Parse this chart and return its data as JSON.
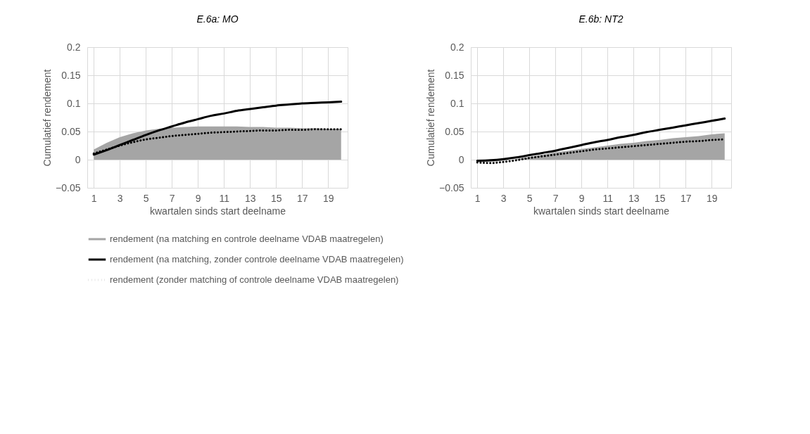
{
  "chart_data": [
    {
      "type": "line",
      "title": "E.6a: MO",
      "xlabel": "kwartalen sinds start deelname",
      "ylabel": "Cumulatief rendement",
      "x": [
        1,
        2,
        3,
        4,
        5,
        6,
        7,
        8,
        9,
        10,
        11,
        12,
        13,
        14,
        15,
        16,
        17,
        18,
        19,
        20
      ],
      "xlim": [
        0.5,
        20.5
      ],
      "xticks": [
        1,
        3,
        5,
        7,
        9,
        11,
        13,
        15,
        17,
        19
      ],
      "ylim": [
        -0.05,
        0.2
      ],
      "yticks": [
        -0.05,
        0,
        0.05,
        0.1,
        0.15,
        0.2
      ],
      "grid": true,
      "legend": "bottom",
      "series": [
        {
          "name": "rendement (na matching en controle deelname VDAB maatregelen)",
          "type": "area",
          "color": "#a5a5a5",
          "values": [
            0.018,
            0.03,
            0.04,
            0.047,
            0.052,
            0.055,
            0.057,
            0.058,
            0.059,
            0.059,
            0.059,
            0.059,
            0.058,
            0.058,
            0.057,
            0.057,
            0.056,
            0.056,
            0.055,
            0.055
          ]
        },
        {
          "name": "rendement (na matching, zonder controle deelname VDAB maatregelen)",
          "type": "line",
          "line_style": "solid",
          "color": "#000000",
          "values": [
            0.009,
            0.017,
            0.026,
            0.035,
            0.044,
            0.052,
            0.059,
            0.066,
            0.072,
            0.078,
            0.082,
            0.087,
            0.09,
            0.093,
            0.096,
            0.098,
            0.1,
            0.101,
            0.102,
            0.103
          ]
        },
        {
          "name": "rendement (zonder matching of controle deelname VDAB maatregelen)",
          "type": "line",
          "line_style": "dotted",
          "color": "#000000",
          "values": [
            0.011,
            0.018,
            0.025,
            0.031,
            0.036,
            0.039,
            0.042,
            0.044,
            0.046,
            0.048,
            0.049,
            0.05,
            0.051,
            0.052,
            0.052,
            0.053,
            0.053,
            0.054,
            0.054,
            0.054
          ]
        }
      ]
    },
    {
      "type": "line",
      "title": "E.6b: NT2",
      "xlabel": "kwartalen sinds start deelname",
      "ylabel": "Cumulatief rendement",
      "x": [
        1,
        2,
        3,
        4,
        5,
        6,
        7,
        8,
        9,
        10,
        11,
        12,
        13,
        14,
        15,
        16,
        17,
        18,
        19,
        20
      ],
      "xlim": [
        0.5,
        20.5
      ],
      "xticks": [
        1,
        3,
        5,
        7,
        9,
        11,
        13,
        15,
        17,
        19
      ],
      "ylim": [
        -0.05,
        0.2
      ],
      "yticks": [
        -0.05,
        0,
        0.05,
        0.1,
        0.15,
        0.2
      ],
      "grid": true,
      "legend": "bottom",
      "series": [
        {
          "name": "rendement (na matching en controle deelname VDAB maatregelen)",
          "type": "area",
          "color": "#a5a5a5",
          "values": [
            -0.004,
            -0.004,
            -0.002,
            0.001,
            0.005,
            0.009,
            0.013,
            0.016,
            0.019,
            0.022,
            0.025,
            0.028,
            0.03,
            0.033,
            0.035,
            0.038,
            0.04,
            0.042,
            0.045,
            0.047
          ]
        },
        {
          "name": "rendement (na matching, zonder controle deelname VDAB maatregelen)",
          "type": "line",
          "line_style": "solid",
          "color": "#000000",
          "values": [
            -0.002,
            -0.001,
            0.001,
            0.004,
            0.008,
            0.012,
            0.016,
            0.021,
            0.026,
            0.031,
            0.035,
            0.04,
            0.044,
            0.049,
            0.053,
            0.057,
            0.061,
            0.065,
            0.069,
            0.073
          ]
        },
        {
          "name": "rendement (zonder matching of controle deelname VDAB maatregelen)",
          "type": "line",
          "line_style": "dotted",
          "color": "#000000",
          "values": [
            -0.005,
            -0.006,
            -0.004,
            -0.001,
            0.003,
            0.006,
            0.009,
            0.012,
            0.015,
            0.018,
            0.02,
            0.022,
            0.024,
            0.026,
            0.028,
            0.03,
            0.032,
            0.033,
            0.035,
            0.036
          ]
        }
      ]
    }
  ]
}
